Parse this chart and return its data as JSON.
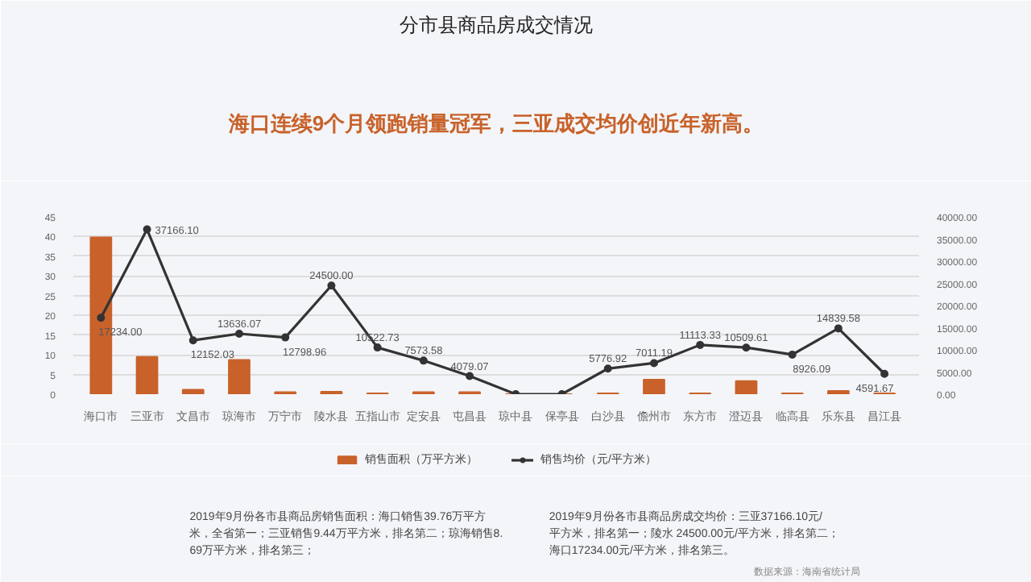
{
  "chart_data": {
    "type": "bar",
    "title": "分市县商品房成交情况",
    "subtitle": "海口连续9个月领跑销量冠军，三亚成交均价创近年新高。",
    "categories": [
      "海口市",
      "三亚市",
      "文昌市",
      "琼海市",
      "万宁市",
      "陵水县",
      "五指山市",
      "定安县",
      "屯昌县",
      "琼中县",
      "保亭县",
      "白沙县",
      "儋州市",
      "东方市",
      "澄迈县",
      "临高县",
      "乐东县",
      "昌江县"
    ],
    "series": [
      {
        "name": "销售面积（万平方米）",
        "color": "#c8622a",
        "values": [
          39.76,
          9.44,
          1.1,
          8.69,
          0.5,
          0.6,
          0.2,
          0.5,
          0.5,
          0,
          0,
          0.2,
          3.7,
          0.2,
          3.3,
          0.2,
          0.8,
          0.2
        ]
      },
      {
        "name": "销售均价（元/平方米）",
        "type": "line",
        "axis": "y2",
        "color": "#333333",
        "marker": "circle",
        "values": [
          17234.0,
          37166.1,
          12152.03,
          13636.07,
          12798.96,
          24500.0,
          10522.73,
          7573.58,
          4079.07,
          0,
          0,
          5776.92,
          7011.19,
          11113.33,
          10509.61,
          8926.09,
          14839.58,
          4591.67
        ],
        "value_labels": [
          "17234.00",
          "37166.10",
          "12152.03",
          "13636.07",
          "12798.96",
          "24500.00",
          "10522.73",
          "7573.58",
          "4079.07",
          null,
          null,
          "5776.92",
          "7011.19",
          "11113.33",
          "10509.61",
          "8926.09",
          "14839.58",
          "4591.67"
        ]
      }
    ],
    "ylim": [
      0,
      45
    ],
    "yticks": [
      0,
      5,
      10,
      15,
      20,
      25,
      30,
      35,
      40,
      45
    ],
    "y2lim": [
      0,
      40000
    ],
    "y2ticks": [
      {
        "value": 0,
        "label": "0.00"
      },
      {
        "value": 5000,
        "label": "5000.00"
      },
      {
        "value": 10000,
        "label": "10000.00"
      },
      {
        "value": 15000,
        "label": "15000.00"
      },
      {
        "value": 20000,
        "label": "20000.00"
      },
      {
        "value": 25000,
        "label": "25000.00"
      },
      {
        "value": 30000,
        "label": "30000.00"
      },
      {
        "value": 35000,
        "label": "35000.00"
      },
      {
        "value": 40000,
        "label": "40000.00"
      }
    ],
    "grid": "y",
    "legend": "bottom",
    "annotations": [
      "2019年9月份各市县商品房销售面积：海口销售39.76万平方米，全省第一；三亚销售9.44万平方米，排名第二；琼海销售8.69万平方米，排名第三；",
      "2019年9月份各市县商品房成交均价：三亚37166.10元/平方米，排名第一；陵水 24500.00元/平方米，排名第二；海口17234.00元/平方米，排名第三。",
      "数据来源：海南省统计局"
    ]
  }
}
